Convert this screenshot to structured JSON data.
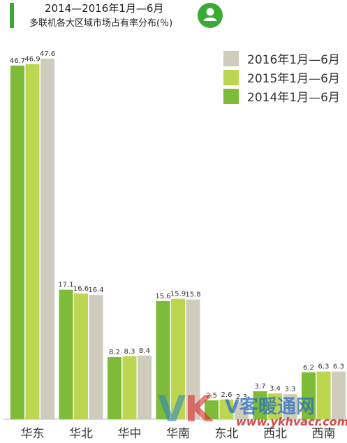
{
  "header": {
    "title_line1": "2014—2016年1月—6月",
    "title_line2": "多联机各大区域市场占有率分布(％)"
  },
  "icons": {
    "header_badge": "user-icon"
  },
  "colors": {
    "accent": "#3aa935",
    "s2014": "#7dbb38",
    "s2015": "#bcd64f",
    "s2016": "#cfcbbd"
  },
  "chart_data": {
    "type": "bar",
    "title": "2014—2016年1月—6月 多联机各大区域市场占有率分布(％)",
    "categories": [
      "华东",
      "华北",
      "华中",
      "华南",
      "东北",
      "西北",
      "西南"
    ],
    "series": [
      {
        "name": "2014年1月—6月",
        "color": "#7dbb38",
        "values": [
          46.7,
          17.1,
          8.2,
          15.6,
          2.5,
          3.7,
          6.2
        ]
      },
      {
        "name": "2015年1月—6月",
        "color": "#bcd64f",
        "values": [
          46.9,
          16.6,
          8.3,
          15.9,
          2.6,
          3.4,
          6.3
        ]
      },
      {
        "name": "2016年1月—6月",
        "color": "#cfcbbd",
        "values": [
          47.6,
          16.4,
          8.4,
          15.8,
          2.3,
          3.3,
          6.3
        ]
      }
    ],
    "legend": {
      "items": [
        "2016年1月—6月",
        "2015年1月—6月",
        "2014年1月—6月"
      ],
      "position": "top-right"
    },
    "ylim": [
      0,
      50
    ],
    "grid": false,
    "xlabel": "",
    "ylabel": ""
  },
  "watermark": {
    "logo_v": "V",
    "logo_k": "K",
    "name": "V客暖通网",
    "url": "www.ykhvacr.com"
  }
}
